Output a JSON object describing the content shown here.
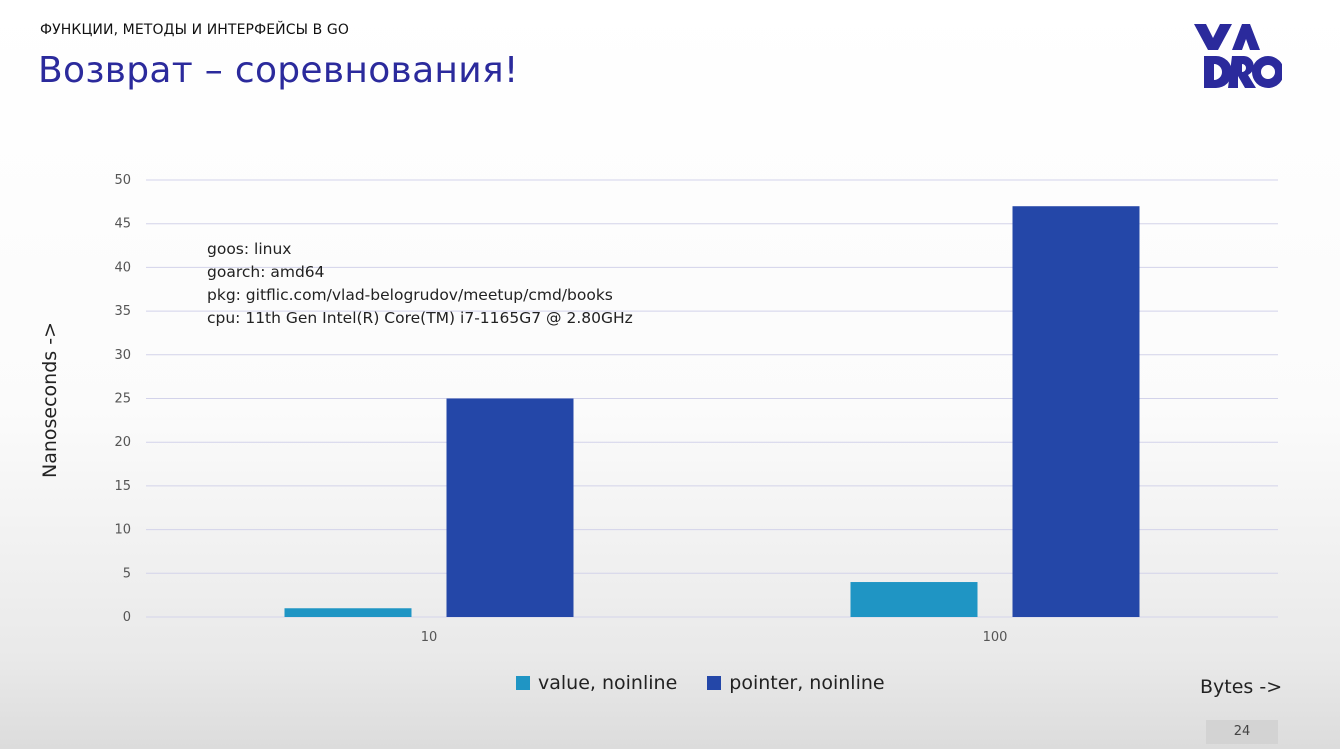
{
  "slide": {
    "eyebrow": "ФУНКЦИИ, МЕТОДЫ И ИНТЕРФЕЙСЫ В GO",
    "title": "Возврат – соревнования!",
    "logo_text": "YADRO",
    "page_number": "24"
  },
  "info_lines": [
    "goos: linux",
    "goarch: amd64",
    "pkg: gitflic.com/vlad-belogrudov/meetup/cmd/books",
    "cpu: 11th Gen Intel(R) Core(TM) i7-1165G7 @ 2.80GHz"
  ],
  "colors": {
    "title": "#2b2a9c",
    "value_series": "#1f95c4",
    "pointer_series": "#2447a8",
    "grid": "#d3d3ea",
    "logo": "#2b2a9c"
  },
  "chart_data": {
    "type": "bar",
    "categories": [
      "10",
      "100"
    ],
    "series": [
      {
        "name": "value, noinline",
        "values": [
          1,
          4
        ]
      },
      {
        "name": "pointer, noinline",
        "values": [
          25,
          47
        ]
      }
    ],
    "xlabel": "Bytes ->",
    "ylabel": "Nanoseconds ->",
    "ylim": [
      0,
      50
    ],
    "yticks": [
      0,
      5,
      10,
      15,
      20,
      25,
      30,
      35,
      40,
      45,
      50
    ],
    "grid": true,
    "legend_position": "bottom"
  }
}
